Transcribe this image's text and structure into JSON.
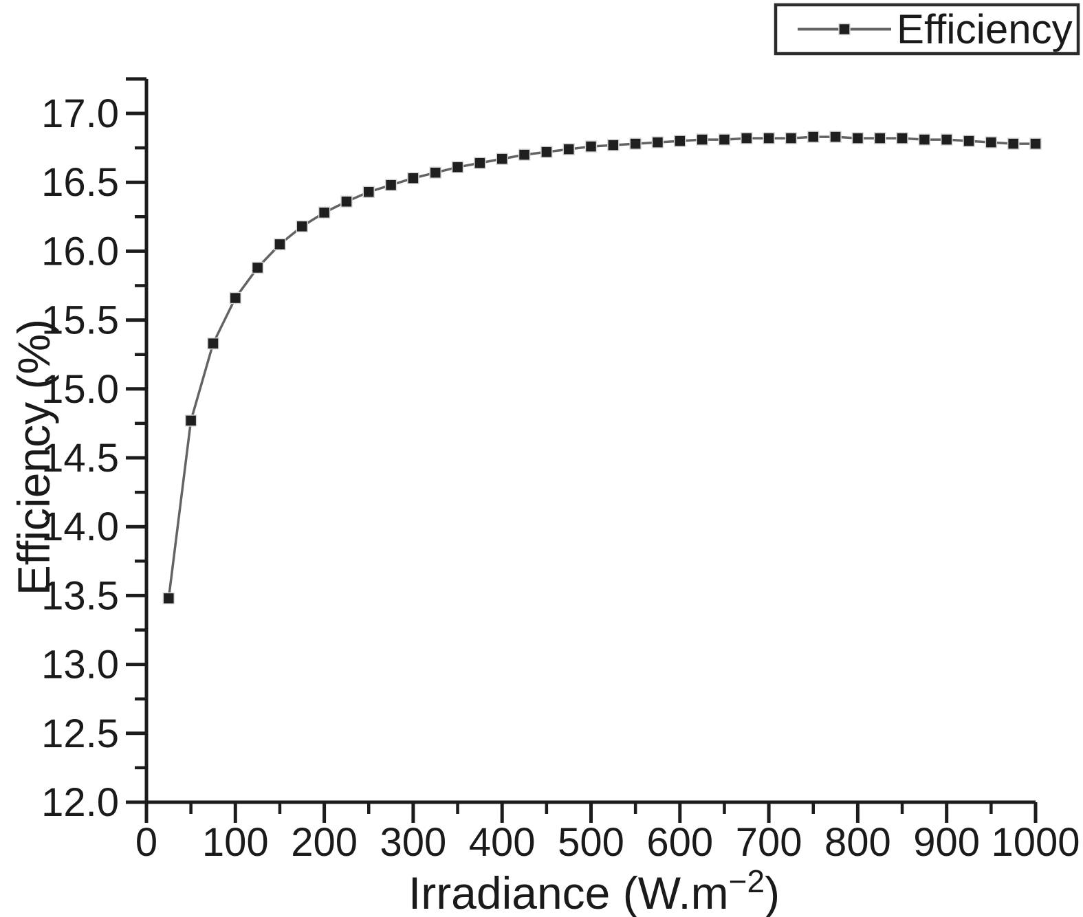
{
  "figure": {
    "background": "#ffffff"
  },
  "colors": {
    "axis": "#1c1c1c",
    "text": "#1a1a1a",
    "series_line": "#636363",
    "series_marker": "#1f1f1f",
    "marker_halo": "#d8d8d8",
    "legend_border": "#2b2b2b",
    "background": "#ffffff"
  },
  "chart_data": {
    "type": "line",
    "title": "",
    "xlabel": "Irradiance (W.m⁻²)",
    "xlabel_parts": {
      "prefix": "Irradiance (W.m",
      "superscript": "−2",
      "suffix": ")"
    },
    "ylabel": "Efficiency (%)",
    "grid": false,
    "legend": {
      "position": "top-right",
      "entries": [
        {
          "label": "Efficiency",
          "marker": "square"
        }
      ]
    },
    "xlim": [
      0,
      1000
    ],
    "ylim": [
      12.0,
      17.0
    ],
    "x_major_tick_step": 100,
    "x_minor_tick_step": 50,
    "y_major_tick_step": 0.5,
    "y_minor_tick_step": 0.25,
    "x_tick_labels": [
      "0",
      "100",
      "200",
      "300",
      "400",
      "500",
      "600",
      "700",
      "800",
      "900",
      "1000"
    ],
    "y_tick_labels": [
      "12.0",
      "12.5",
      "13.0",
      "13.5",
      "14.0",
      "14.5",
      "15.0",
      "15.5",
      "16.0",
      "16.5",
      "17.0"
    ],
    "series": [
      {
        "name": "Efficiency",
        "marker": "square",
        "x": [
          25,
          50,
          75,
          100,
          125,
          150,
          175,
          200,
          225,
          250,
          275,
          300,
          325,
          350,
          375,
          400,
          425,
          450,
          475,
          500,
          525,
          550,
          575,
          600,
          625,
          650,
          675,
          700,
          725,
          750,
          775,
          800,
          825,
          850,
          875,
          900,
          925,
          950,
          975,
          1000
        ],
        "y": [
          13.48,
          14.77,
          15.33,
          15.66,
          15.88,
          16.05,
          16.18,
          16.28,
          16.36,
          16.43,
          16.48,
          16.53,
          16.57,
          16.61,
          16.64,
          16.67,
          16.7,
          16.72,
          16.74,
          16.76,
          16.77,
          16.78,
          16.79,
          16.8,
          16.81,
          16.81,
          16.82,
          16.82,
          16.82,
          16.83,
          16.83,
          16.82,
          16.82,
          16.82,
          16.81,
          16.81,
          16.8,
          16.79,
          16.78,
          16.78
        ]
      }
    ]
  }
}
